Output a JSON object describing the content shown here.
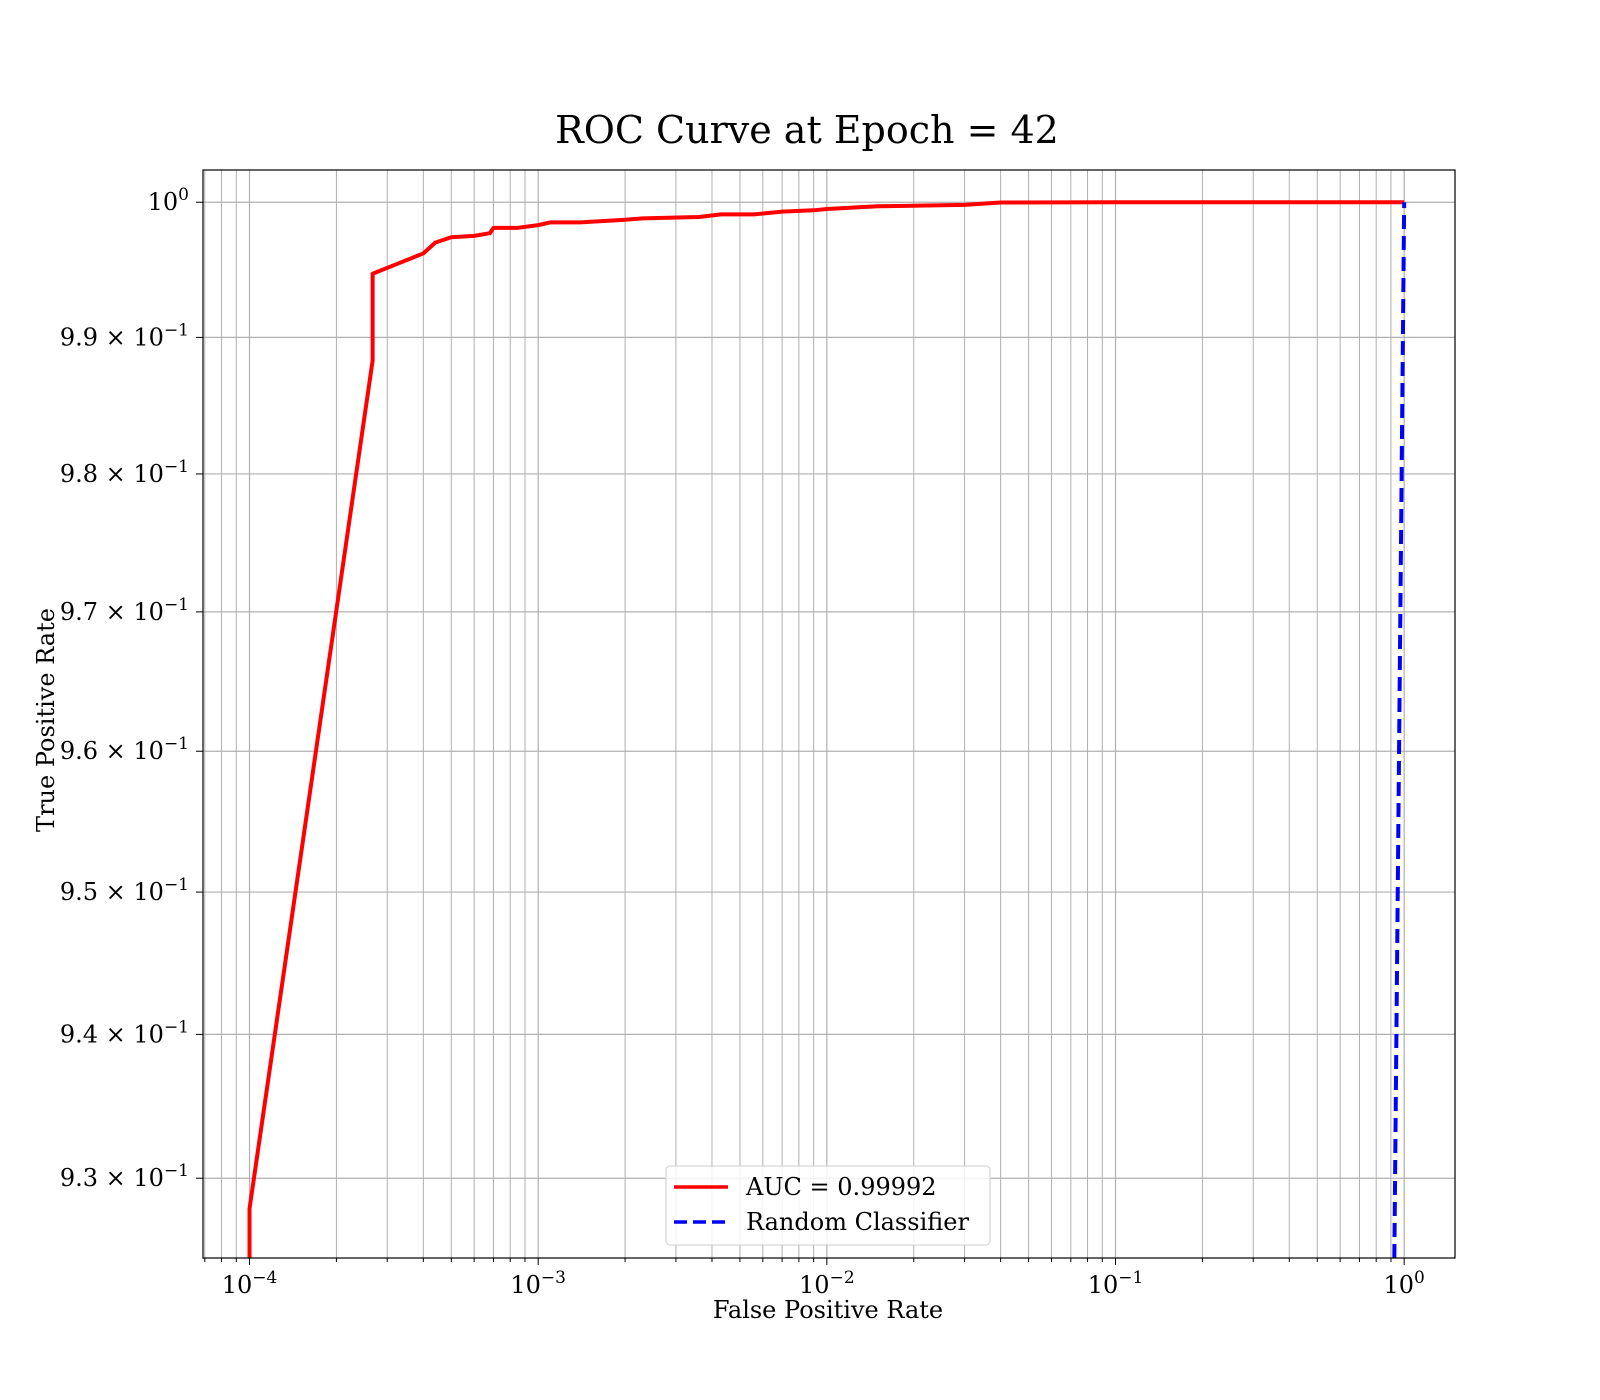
{
  "chart_data": {
    "type": "line",
    "title": "ROC Curve at Epoch = 42",
    "xlabel": "False Positive Rate",
    "ylabel": "True Positive Rate",
    "xscale": "log",
    "yscale": "log",
    "xlim": [
      6.9e-05,
      1.5
    ],
    "ylim": [
      0.9245,
      1.0024
    ],
    "grid": true,
    "minor_grid": true,
    "legend_position": "bottom-center",
    "x_tick_labels": [
      {
        "value": 0.0001,
        "base": "10",
        "exp": "−4"
      },
      {
        "value": 0.001,
        "base": "10",
        "exp": "−3"
      },
      {
        "value": 0.01,
        "base": "10",
        "exp": "−2"
      },
      {
        "value": 0.1,
        "base": "10",
        "exp": "−1"
      },
      {
        "value": 1,
        "base": "10",
        "exp": "0"
      }
    ],
    "y_tick_labels": [
      {
        "value": 1.0,
        "mant": "",
        "base": "10",
        "exp": "0"
      },
      {
        "value": 0.99,
        "mant": "9.9 × ",
        "base": "10",
        "exp": "−1"
      },
      {
        "value": 0.98,
        "mant": "9.8 × ",
        "base": "10",
        "exp": "−1"
      },
      {
        "value": 0.97,
        "mant": "9.7 × ",
        "base": "10",
        "exp": "−1"
      },
      {
        "value": 0.96,
        "mant": "9.6 × ",
        "base": "10",
        "exp": "−1"
      },
      {
        "value": 0.95,
        "mant": "9.5 × ",
        "base": "10",
        "exp": "−1"
      },
      {
        "value": 0.94,
        "mant": "9.4 × ",
        "base": "10",
        "exp": "−1"
      },
      {
        "value": 0.93,
        "mant": "9.3 × ",
        "base": "10",
        "exp": "−1"
      }
    ],
    "series": [
      {
        "name": "AUC = 0.99992",
        "color": "#ff0000",
        "style": "solid",
        "x": [
          0.0001,
          0.0001,
          0.000267,
          0.000267,
          0.0004,
          0.00044,
          0.0005,
          0.0006,
          0.00068,
          0.0007,
          0.00085,
          0.001,
          0.0011,
          0.0014,
          0.002,
          0.0023,
          0.0036,
          0.0043,
          0.0056,
          0.007,
          0.009,
          0.01,
          0.015,
          0.03,
          0.04,
          0.1,
          0.23,
          1.0
        ],
        "y": [
          0.9245,
          0.9279,
          0.9883,
          0.9947,
          0.9962,
          0.997,
          0.9974,
          0.9975,
          0.9977,
          0.9981,
          0.9981,
          0.9983,
          0.9985,
          0.9985,
          0.9987,
          0.9988,
          0.9989,
          0.9991,
          0.9991,
          0.9993,
          0.9994,
          0.9995,
          0.9997,
          0.9998,
          0.99998,
          1.0,
          1.0,
          1.0
        ]
      },
      {
        "name": "Random Classifier",
        "color": "#0000ff",
        "style": "dashed",
        "x": [
          0.9245,
          1.0
        ],
        "y": [
          0.9245,
          1.0
        ]
      }
    ]
  }
}
